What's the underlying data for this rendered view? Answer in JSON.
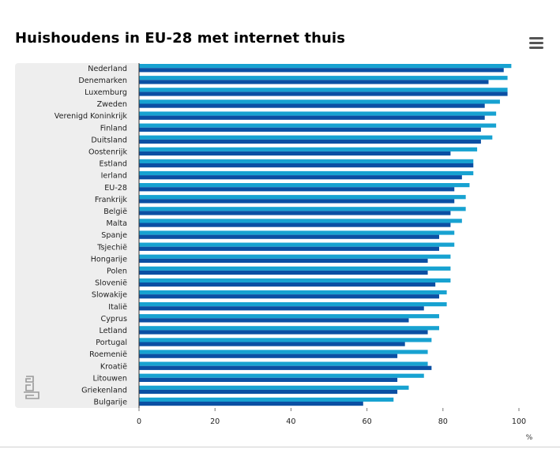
{
  "title": "Huishoudens in EU-28 met internet thuis",
  "menu_icon": "hamburger-menu-icon",
  "logo_icon": "cbs-logo-icon",
  "colors": {
    "series_a": "#17a2d1",
    "series_b": "#0b4fa3",
    "band": "#eeeeee",
    "axis": "#333333"
  },
  "chart_data": {
    "type": "bar",
    "orientation": "horizontal",
    "title": "Huishoudens in EU-28 met internet thuis",
    "xlabel": "%",
    "xlim": [
      0,
      100
    ],
    "xticks": [
      0,
      20,
      40,
      60,
      80,
      100
    ],
    "grid": false,
    "legend": "none",
    "categories": [
      "Nederland",
      "Denemarken",
      "Luxemburg",
      "Zweden",
      "Verenigd Koninkrijk",
      "Finland",
      "Duitsland",
      "Oostenrijk",
      "Estland",
      "Ierland",
      "EU-28",
      "Frankrijk",
      "België",
      "Malta",
      "Spanje",
      "Tsjechië",
      "Hongarije",
      "Polen",
      "Slovenië",
      "Slowakije",
      "Italië",
      "Cyprus",
      "Letland",
      "Portugal",
      "Roemenië",
      "Kroatië",
      "Litouwen",
      "Griekenland",
      "Bulgarije"
    ],
    "series": [
      {
        "values": [
          98,
          97,
          97,
          95,
          94,
          94,
          93,
          89,
          88,
          88,
          87,
          86,
          86,
          85,
          83,
          83,
          82,
          82,
          82,
          81,
          81,
          79,
          79,
          77,
          76,
          76,
          75,
          71,
          67
        ]
      },
      {
        "values": [
          96,
          92,
          97,
          91,
          91,
          90,
          90,
          82,
          88,
          85,
          83,
          83,
          82,
          82,
          79,
          79,
          76,
          76,
          78,
          79,
          75,
          71,
          76,
          70,
          68,
          77,
          68,
          68,
          59
        ]
      }
    ]
  }
}
